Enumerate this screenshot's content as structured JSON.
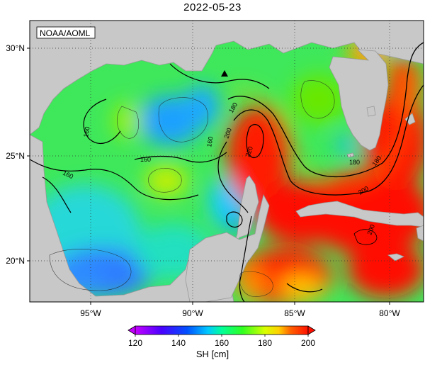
{
  "title": "2022-05-23",
  "credit": "NOAA/AOML",
  "lat_ticks": [
    "30°N",
    "25°N",
    "20°N"
  ],
  "lon_ticks": [
    "95°W",
    "90°W",
    "85°W",
    "80°W"
  ],
  "contour_labels": [
    "160",
    "160",
    "160",
    "160",
    "180",
    "180",
    "180",
    "200",
    "200",
    "220",
    "200"
  ],
  "colorbar": {
    "ticks": [
      "120",
      "140",
      "160",
      "180",
      "200"
    ],
    "label": "SH [cm]",
    "colors": [
      "#ff00ff",
      "#8a00ff",
      "#0000ff",
      "#0080ff",
      "#00e0ff",
      "#00ff80",
      "#40ff00",
      "#c0ff00",
      "#ffff00",
      "#ffa000",
      "#ff3000",
      "#ff0000"
    ]
  },
  "marker": "triangle",
  "colors": {
    "land": "#c8c8c8",
    "warm": "#ff1a00",
    "cool": "#2f7bff",
    "mid": "#28e060"
  }
}
